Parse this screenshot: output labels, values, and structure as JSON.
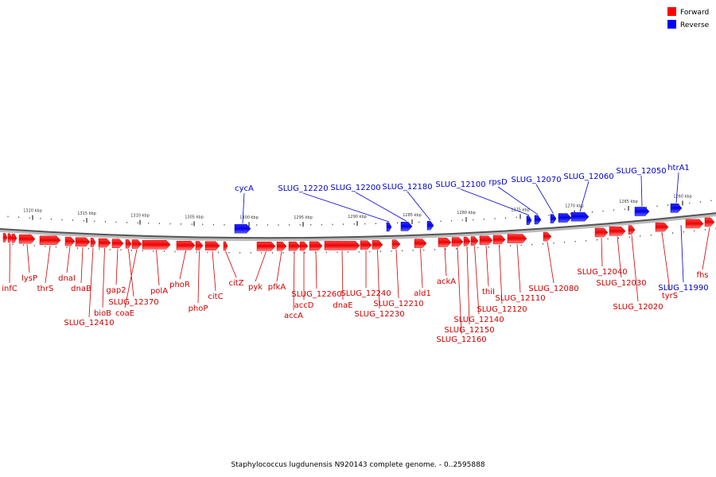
{
  "legend": {
    "forward_label": "Forward",
    "reverse_label": "Reverse",
    "forward_color": "#ff0000",
    "reverse_color": "#0000ff"
  },
  "caption": "Staphylococcus lugdunensis N920143 complete genome. - 0..2595888",
  "ticks": [
    "1320 kbp",
    "1315 kbp",
    "1310 kbp",
    "1305 kbp",
    "1300 kbp",
    "1295 kbp",
    "1290 kbp",
    "1285 kbp",
    "1280 kbp",
    "1275 kbp",
    "1270 kbp",
    "1265 kbp",
    "1260 kbp"
  ],
  "forward_genes": [
    "infC",
    "lysP",
    "thrS",
    "dnaI",
    "dnaB",
    "SLUG_12410",
    "bioB",
    "gap2",
    "SLUG_12370",
    "coaE",
    "polA",
    "phoR",
    "phoP",
    "citC",
    "citZ",
    "pyk",
    "pfkA",
    "accA",
    "accD",
    "SLUG_12260",
    "dnaE",
    "SLUG_12240",
    "SLUG_12230",
    "SLUG_12210",
    "ald1",
    "ackA",
    "SLUG_12160",
    "SLUG_12150",
    "SLUG_12140",
    "thiI",
    "SLUG_12120",
    "SLUG_12110",
    "SLUG_12080",
    "SLUG_12040",
    "SLUG_12030",
    "SLUG_12020",
    "tyrS",
    "fhs"
  ],
  "reverse_genes": [
    "cycA",
    "SLUG_12220",
    "SLUG_12200",
    "SLUG_12180",
    "SLUG_12100",
    "rpsD",
    "SLUG_12070",
    "SLUG_12060",
    "SLUG_12050",
    "htrA1",
    "SLUG_11990"
  ]
}
